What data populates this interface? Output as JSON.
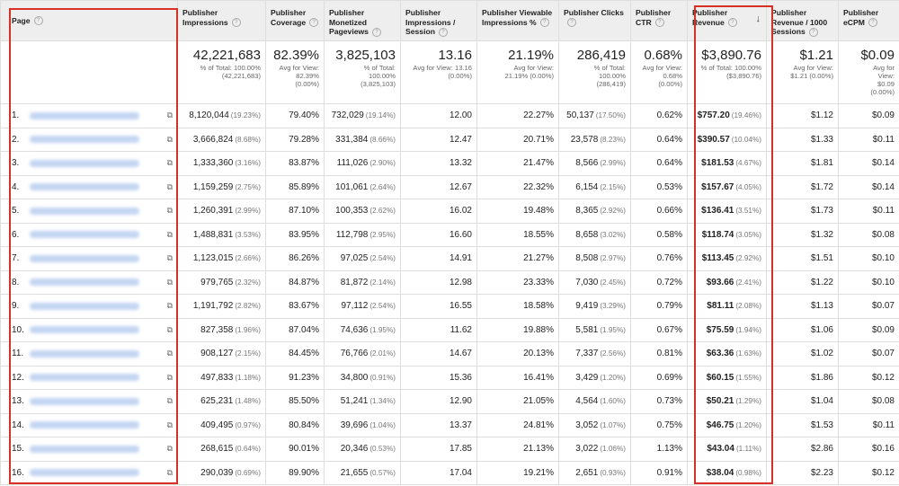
{
  "headers": {
    "page": "Page",
    "impressions": "Publisher Impressions",
    "coverage": "Publisher Coverage",
    "monetized": "Publisher Monetized Pageviews",
    "impr_session": "Publisher Impressions / Session",
    "viewable": "Publisher Viewable Impressions %",
    "clicks": "Publisher Clicks",
    "ctr": "Publisher CTR",
    "revenue": "Publisher Revenue",
    "rev_1000": "Publisher Revenue / 1000 Sessions",
    "ecpm": "Publisher eCPM"
  },
  "totals": {
    "impressions": {
      "value": "42,221,683",
      "sub1": "% of Total: 100.00%",
      "sub2": "(42,221,683)"
    },
    "coverage": {
      "value": "82.39%",
      "sub1": "Avg for View:",
      "sub2": "82.39%",
      "sub3": "(0.00%)"
    },
    "monetized": {
      "value": "3,825,103",
      "sub1": "% of Total:",
      "sub2": "100.00%",
      "sub3": "(3,825,103)"
    },
    "impr_session": {
      "value": "13.16",
      "sub1": "Avg for View: 13.16",
      "sub2": "(0.00%)"
    },
    "viewable": {
      "value": "21.19%",
      "sub1": "Avg for View:",
      "sub2": "21.19% (0.00%)"
    },
    "clicks": {
      "value": "286,419",
      "sub1": "% of Total:",
      "sub2": "100.00%",
      "sub3": "(286,419)"
    },
    "ctr": {
      "value": "0.68%",
      "sub1": "Avg for View:",
      "sub2": "0.68%",
      "sub3": "(0.00%)"
    },
    "revenue": {
      "value": "$3,890.76",
      "sub1": "% of Total: 100.00%",
      "sub2": "($3,890.76)"
    },
    "rev_1000": {
      "value": "$1.21",
      "sub1": "Avg for View:",
      "sub2": "$1.21 (0.00%)"
    },
    "ecpm": {
      "value": "$0.09",
      "sub1": "Avg for",
      "sub2": "View:",
      "sub3": "$0.09",
      "sub4": "(0.00%)"
    }
  },
  "rows": [
    {
      "idx": "1.",
      "impressions": "8,120,044",
      "imp_pct": "(19.23%)",
      "coverage": "79.40%",
      "monetized": "732,029",
      "mon_pct": "(19.14%)",
      "impr_session": "12.00",
      "viewable": "22.27%",
      "clicks": "50,137",
      "clk_pct": "(17.50%)",
      "ctr": "0.62%",
      "revenue": "$757.20",
      "rev_pct": "(19.46%)",
      "rev_1000": "$1.12",
      "ecpm": "$0.09"
    },
    {
      "idx": "2.",
      "impressions": "3,666,824",
      "imp_pct": "(8.68%)",
      "coverage": "79.28%",
      "monetized": "331,384",
      "mon_pct": "(8.66%)",
      "impr_session": "12.47",
      "viewable": "20.71%",
      "clicks": "23,578",
      "clk_pct": "(8.23%)",
      "ctr": "0.64%",
      "revenue": "$390.57",
      "rev_pct": "(10.04%)",
      "rev_1000": "$1.33",
      "ecpm": "$0.11"
    },
    {
      "idx": "3.",
      "impressions": "1,333,360",
      "imp_pct": "(3.16%)",
      "coverage": "83.87%",
      "monetized": "111,026",
      "mon_pct": "(2.90%)",
      "impr_session": "13.32",
      "viewable": "21.47%",
      "clicks": "8,566",
      "clk_pct": "(2.99%)",
      "ctr": "0.64%",
      "revenue": "$181.53",
      "rev_pct": "(4.67%)",
      "rev_1000": "$1.81",
      "ecpm": "$0.14"
    },
    {
      "idx": "4.",
      "impressions": "1,159,259",
      "imp_pct": "(2.75%)",
      "coverage": "85.89%",
      "monetized": "101,061",
      "mon_pct": "(2.64%)",
      "impr_session": "12.67",
      "viewable": "22.32%",
      "clicks": "6,154",
      "clk_pct": "(2.15%)",
      "ctr": "0.53%",
      "revenue": "$157.67",
      "rev_pct": "(4.05%)",
      "rev_1000": "$1.72",
      "ecpm": "$0.14"
    },
    {
      "idx": "5.",
      "impressions": "1,260,391",
      "imp_pct": "(2.99%)",
      "coverage": "87.10%",
      "monetized": "100,353",
      "mon_pct": "(2.62%)",
      "impr_session": "16.02",
      "viewable": "19.48%",
      "clicks": "8,365",
      "clk_pct": "(2.92%)",
      "ctr": "0.66%",
      "revenue": "$136.41",
      "rev_pct": "(3.51%)",
      "rev_1000": "$1.73",
      "ecpm": "$0.11"
    },
    {
      "idx": "6.",
      "impressions": "1,488,831",
      "imp_pct": "(3.53%)",
      "coverage": "83.95%",
      "monetized": "112,798",
      "mon_pct": "(2.95%)",
      "impr_session": "16.60",
      "viewable": "18.55%",
      "clicks": "8,658",
      "clk_pct": "(3.02%)",
      "ctr": "0.58%",
      "revenue": "$118.74",
      "rev_pct": "(3.05%)",
      "rev_1000": "$1.32",
      "ecpm": "$0.08"
    },
    {
      "idx": "7.",
      "impressions": "1,123,015",
      "imp_pct": "(2.66%)",
      "coverage": "86.26%",
      "monetized": "97,025",
      "mon_pct": "(2.54%)",
      "impr_session": "14.91",
      "viewable": "21.27%",
      "clicks": "8,508",
      "clk_pct": "(2.97%)",
      "ctr": "0.76%",
      "revenue": "$113.45",
      "rev_pct": "(2.92%)",
      "rev_1000": "$1.51",
      "ecpm": "$0.10"
    },
    {
      "idx": "8.",
      "impressions": "979,765",
      "imp_pct": "(2.32%)",
      "coverage": "84.87%",
      "monetized": "81,872",
      "mon_pct": "(2.14%)",
      "impr_session": "12.98",
      "viewable": "23.33%",
      "clicks": "7,030",
      "clk_pct": "(2.45%)",
      "ctr": "0.72%",
      "revenue": "$93.66",
      "rev_pct": "(2.41%)",
      "rev_1000": "$1.22",
      "ecpm": "$0.10"
    },
    {
      "idx": "9.",
      "impressions": "1,191,792",
      "imp_pct": "(2.82%)",
      "coverage": "83.67%",
      "monetized": "97,112",
      "mon_pct": "(2.54%)",
      "impr_session": "16.55",
      "viewable": "18.58%",
      "clicks": "9,419",
      "clk_pct": "(3.29%)",
      "ctr": "0.79%",
      "revenue": "$81.11",
      "rev_pct": "(2.08%)",
      "rev_1000": "$1.13",
      "ecpm": "$0.07"
    },
    {
      "idx": "10.",
      "impressions": "827,358",
      "imp_pct": "(1.96%)",
      "coverage": "87.04%",
      "monetized": "74,636",
      "mon_pct": "(1.95%)",
      "impr_session": "11.62",
      "viewable": "19.88%",
      "clicks": "5,581",
      "clk_pct": "(1.95%)",
      "ctr": "0.67%",
      "revenue": "$75.59",
      "rev_pct": "(1.94%)",
      "rev_1000": "$1.06",
      "ecpm": "$0.09"
    },
    {
      "idx": "11.",
      "impressions": "908,127",
      "imp_pct": "(2.15%)",
      "coverage": "84.45%",
      "monetized": "76,766",
      "mon_pct": "(2.01%)",
      "impr_session": "14.67",
      "viewable": "20.13%",
      "clicks": "7,337",
      "clk_pct": "(2.56%)",
      "ctr": "0.81%",
      "revenue": "$63.36",
      "rev_pct": "(1.63%)",
      "rev_1000": "$1.02",
      "ecpm": "$0.07"
    },
    {
      "idx": "12.",
      "impressions": "497,833",
      "imp_pct": "(1.18%)",
      "coverage": "91.23%",
      "monetized": "34,800",
      "mon_pct": "(0.91%)",
      "impr_session": "15.36",
      "viewable": "16.41%",
      "clicks": "3,429",
      "clk_pct": "(1.20%)",
      "ctr": "0.69%",
      "revenue": "$60.15",
      "rev_pct": "(1.55%)",
      "rev_1000": "$1.86",
      "ecpm": "$0.12"
    },
    {
      "idx": "13.",
      "impressions": "625,231",
      "imp_pct": "(1.48%)",
      "coverage": "85.50%",
      "monetized": "51,241",
      "mon_pct": "(1.34%)",
      "impr_session": "12.90",
      "viewable": "21.05%",
      "clicks": "4,564",
      "clk_pct": "(1.60%)",
      "ctr": "0.73%",
      "revenue": "$50.21",
      "rev_pct": "(1.29%)",
      "rev_1000": "$1.04",
      "ecpm": "$0.08"
    },
    {
      "idx": "14.",
      "impressions": "409,495",
      "imp_pct": "(0.97%)",
      "coverage": "80.84%",
      "monetized": "39,696",
      "mon_pct": "(1.04%)",
      "impr_session": "13.37",
      "viewable": "24.81%",
      "clicks": "3,052",
      "clk_pct": "(1.07%)",
      "ctr": "0.75%",
      "revenue": "$46.75",
      "rev_pct": "(1.20%)",
      "rev_1000": "$1.53",
      "ecpm": "$0.11"
    },
    {
      "idx": "15.",
      "impressions": "268,615",
      "imp_pct": "(0.64%)",
      "coverage": "90.01%",
      "monetized": "20,346",
      "mon_pct": "(0.53%)",
      "impr_session": "17.85",
      "viewable": "21.13%",
      "clicks": "3,022",
      "clk_pct": "(1.06%)",
      "ctr": "1.13%",
      "revenue": "$43.04",
      "rev_pct": "(1.11%)",
      "rev_1000": "$2.86",
      "ecpm": "$0.16"
    },
    {
      "idx": "16.",
      "impressions": "290,039",
      "imp_pct": "(0.69%)",
      "coverage": "89.90%",
      "monetized": "21,655",
      "mon_pct": "(0.57%)",
      "impr_session": "17.04",
      "viewable": "19.21%",
      "clicks": "2,651",
      "clk_pct": "(0.93%)",
      "ctr": "0.91%",
      "revenue": "$38.04",
      "rev_pct": "(0.98%)",
      "rev_1000": "$2.23",
      "ecpm": "$0.12"
    }
  ],
  "colors": {
    "highlight": "#d93025",
    "header_bg": "#eeeeee",
    "blurred_link": "#c3d5f1"
  },
  "icons": {
    "help": "help-circle-icon",
    "sort": "sort-descending-arrow-icon",
    "popout": "open-in-new-window-icon"
  }
}
